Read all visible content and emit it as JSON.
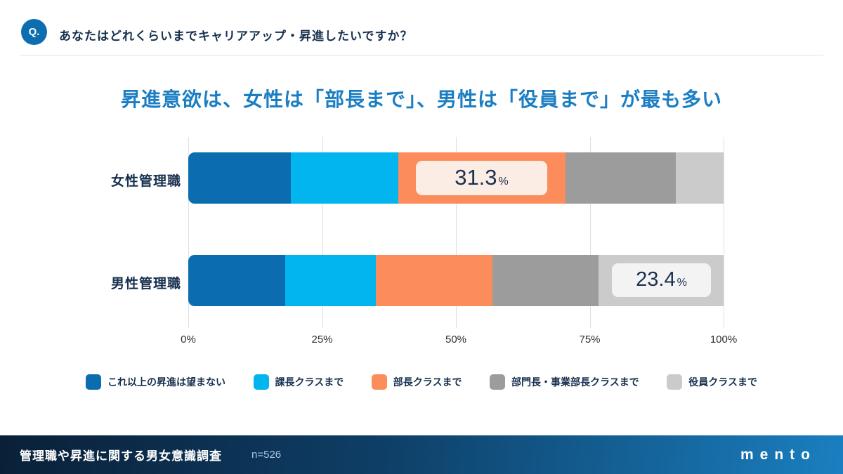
{
  "header": {
    "q_badge": "Q.",
    "question": "あなたはどれくらいまでキャリアアップ・昇進したいですか？"
  },
  "title": "昇進意欲は、女性は「部長まで」、男性は「役員まで」が最も多い",
  "chart_data": {
    "type": "bar",
    "orientation": "horizontal",
    "stacked": true,
    "categories": [
      "女性管理職",
      "男性管理職"
    ],
    "series": [
      {
        "name": "これ以上の昇進は望まない",
        "color": "#0B6DB0",
        "values": [
          19.1,
          18.1
        ]
      },
      {
        "name": "課長クラスまで",
        "color": "#03B5EF",
        "values": [
          20.1,
          17.0
        ]
      },
      {
        "name": "部長クラスまで",
        "color": "#FD8C5D",
        "values": [
          31.3,
          21.7
        ]
      },
      {
        "name": "部門長・事業部長クラスまで",
        "color": "#9C9C9C",
        "values": [
          20.6,
          19.8
        ]
      },
      {
        "name": "役員クラスまで",
        "color": "#CBCBCB",
        "values": [
          8.9,
          23.4
        ]
      }
    ],
    "data_labels": [
      {
        "category": "女性管理職",
        "series": "部長クラスまで",
        "value": "31.3",
        "unit": "%"
      },
      {
        "category": "男性管理職",
        "series": "役員クラスまで",
        "value": "23.4",
        "unit": "%"
      }
    ],
    "x_ticks": [
      "0%",
      "25%",
      "50%",
      "75%",
      "100%"
    ],
    "xlim": [
      0,
      100
    ],
    "grid": true,
    "legend_position": "bottom"
  },
  "footer": {
    "survey_title": "管理職や昇進に関する男女意識調査",
    "sample_size": "n=526",
    "logo": "mento"
  },
  "colors": {
    "title_blue": "#1B7EC3",
    "text_navy": "#17304F",
    "q_badge_bg": "#0C6DB1",
    "gridline": "#E0E0E0",
    "female_label_box_bg": "#FCEDE4",
    "male_label_box_bg": "#F3F3F4",
    "footer_gradient_left": "#0A2038",
    "footer_gradient_right": "#1A7FC0"
  }
}
